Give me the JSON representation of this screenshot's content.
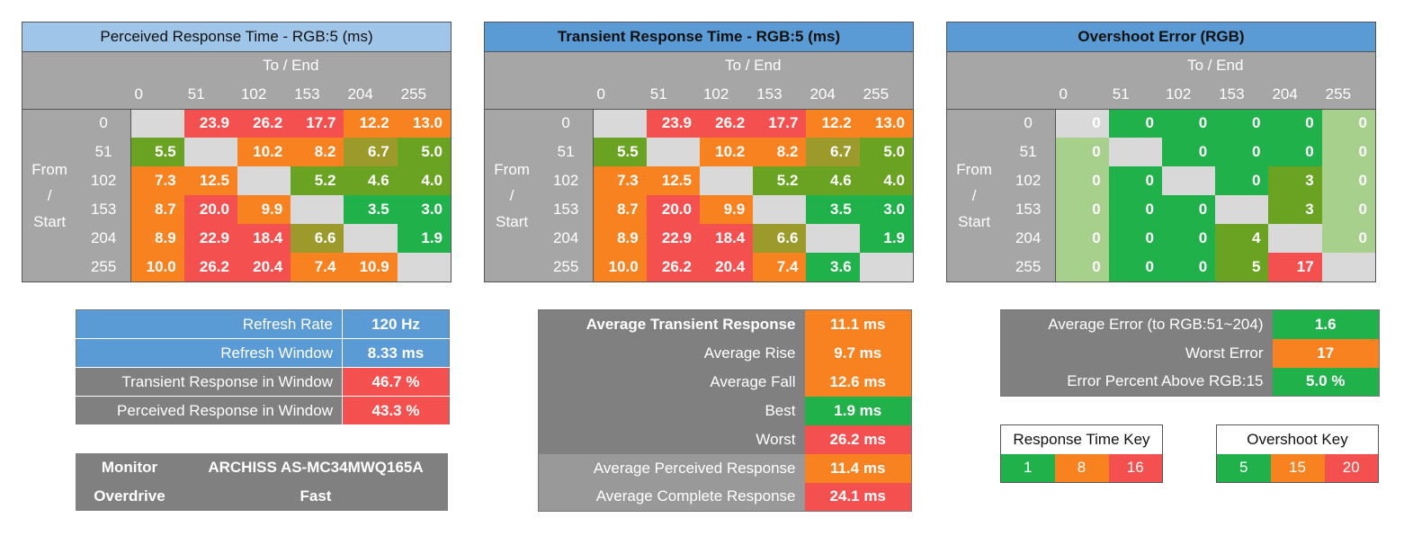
{
  "colors": {
    "green": "#21b14b",
    "olive": "#6aa221",
    "dark_olive": "#9c9a2a",
    "orange": "#f98220",
    "red": "#f55050",
    "light_green": "#a8d08d",
    "diag": "#d9d9d9",
    "header_gray": "#a6a6a6",
    "light_blue": "#9fc5e8",
    "blue": "#5b9bd5",
    "panel_gray": "#808080",
    "panel_gray2": "#999999"
  },
  "matrices": [
    {
      "title": "Perceived Response Time - RGB:5 (ms)",
      "to_end": "To / End",
      "from_start_lines": [
        "From",
        "/",
        "Start"
      ],
      "levels": [
        "0",
        "51",
        "102",
        "153",
        "204",
        "255"
      ],
      "rows": [
        [
          "",
          "23.9",
          "26.2",
          "17.7",
          "12.2",
          "13.0"
        ],
        [
          "5.5",
          "",
          "10.2",
          "8.2",
          "6.7",
          "5.0"
        ],
        [
          "7.3",
          "12.5",
          "",
          "5.2",
          "4.6",
          "4.0"
        ],
        [
          "8.7",
          "20.0",
          "9.9",
          "",
          "3.5",
          "3.0"
        ],
        [
          "8.9",
          "22.9",
          "18.4",
          "6.6",
          "",
          "1.9"
        ],
        [
          "10.0",
          "26.2",
          "20.4",
          "7.4",
          "10.9",
          ""
        ]
      ],
      "cell_colors": [
        [
          "diag",
          "red",
          "red",
          "red",
          "orange",
          "orange"
        ],
        [
          "olive",
          "diag",
          "orange",
          "orange",
          "dark_olive",
          "olive"
        ],
        [
          "orange",
          "orange",
          "diag",
          "olive",
          "olive",
          "olive"
        ],
        [
          "orange",
          "red",
          "orange",
          "diag",
          "green",
          "green"
        ],
        [
          "orange",
          "red",
          "red",
          "dark_olive",
          "diag",
          "green"
        ],
        [
          "orange",
          "red",
          "red",
          "orange",
          "orange",
          "diag"
        ]
      ]
    },
    {
      "title": "Transient Response Time - RGB:5 (ms)",
      "to_end": "To / End",
      "from_start_lines": [
        "From",
        "/",
        "Start"
      ],
      "levels": [
        "0",
        "51",
        "102",
        "153",
        "204",
        "255"
      ],
      "rows": [
        [
          "",
          "23.9",
          "26.2",
          "17.7",
          "12.2",
          "13.0"
        ],
        [
          "5.5",
          "",
          "10.2",
          "8.2",
          "6.7",
          "5.0"
        ],
        [
          "7.3",
          "12.5",
          "",
          "5.2",
          "4.6",
          "4.0"
        ],
        [
          "8.7",
          "20.0",
          "9.9",
          "",
          "3.5",
          "3.0"
        ],
        [
          "8.9",
          "22.9",
          "18.4",
          "6.6",
          "",
          "1.9"
        ],
        [
          "10.0",
          "26.2",
          "20.4",
          "7.4",
          "3.6",
          ""
        ]
      ],
      "cell_colors": [
        [
          "diag",
          "red",
          "red",
          "red",
          "orange",
          "orange"
        ],
        [
          "olive",
          "diag",
          "orange",
          "orange",
          "dark_olive",
          "olive"
        ],
        [
          "orange",
          "orange",
          "diag",
          "olive",
          "olive",
          "olive"
        ],
        [
          "orange",
          "red",
          "orange",
          "diag",
          "green",
          "green"
        ],
        [
          "orange",
          "red",
          "red",
          "dark_olive",
          "diag",
          "green"
        ],
        [
          "orange",
          "red",
          "red",
          "orange",
          "green",
          "diag"
        ]
      ]
    },
    {
      "title": "Overshoot Error (RGB)",
      "to_end": "To / End",
      "from_start_lines": [
        "From",
        "/",
        "Start"
      ],
      "levels": [
        "0",
        "51",
        "102",
        "153",
        "204",
        "255"
      ],
      "rows": [
        [
          "0",
          "0",
          "0",
          "0",
          "0",
          "0"
        ],
        [
          "0",
          "",
          "0",
          "0",
          "0",
          "0"
        ],
        [
          "0",
          "0",
          "",
          "0",
          "3",
          "0"
        ],
        [
          "0",
          "0",
          "0",
          "",
          "3",
          "0"
        ],
        [
          "0",
          "0",
          "0",
          "4",
          "",
          "0"
        ],
        [
          "0",
          "0",
          "0",
          "5",
          "17",
          ""
        ]
      ],
      "cell_colors": [
        [
          "diag",
          "green",
          "green",
          "green",
          "green",
          "light_green"
        ],
        [
          "light_green",
          "diag",
          "green",
          "green",
          "green",
          "light_green"
        ],
        [
          "light_green",
          "green",
          "diag",
          "green",
          "olive",
          "light_green"
        ],
        [
          "light_green",
          "green",
          "green",
          "diag",
          "olive",
          "light_green"
        ],
        [
          "light_green",
          "green",
          "green",
          "olive",
          "diag",
          "light_green"
        ],
        [
          "light_green",
          "green",
          "green",
          "olive",
          "red",
          "diag"
        ]
      ]
    }
  ],
  "refresh": [
    {
      "label": "Refresh Rate",
      "value": "120 Hz",
      "label_color": "blue",
      "value_color": "blue"
    },
    {
      "label": "Refresh Window",
      "value": "8.33 ms",
      "label_color": "blue",
      "value_color": "blue"
    },
    {
      "label": "Transient Response in Window",
      "value": "46.7 %",
      "label_color": "panel_gray",
      "value_color": "red"
    },
    {
      "label": "Perceived Response in Window",
      "value": "43.3 %",
      "label_color": "panel_gray",
      "value_color": "red"
    }
  ],
  "monitor": {
    "monitor_label": "Monitor",
    "monitor_value": "ARCHISS AS-MC34MWQ165A",
    "overdrive_label": "Overdrive",
    "overdrive_value": "Fast"
  },
  "averages": [
    {
      "label": "Average Transient Response",
      "value": "11.1 ms",
      "value_color": "orange",
      "bold": true,
      "label_color": "panel_gray"
    },
    {
      "label": "Average Rise",
      "value": "9.7 ms",
      "value_color": "orange",
      "bold": false,
      "label_color": "panel_gray"
    },
    {
      "label": "Average Fall",
      "value": "12.6 ms",
      "value_color": "orange",
      "bold": false,
      "label_color": "panel_gray"
    },
    {
      "label": "Best",
      "value": "1.9 ms",
      "value_color": "green",
      "bold": false,
      "label_color": "panel_gray"
    },
    {
      "label": "Worst",
      "value": "26.2 ms",
      "value_color": "red",
      "bold": false,
      "label_color": "panel_gray"
    },
    {
      "label": "Average Perceived Response",
      "value": "11.4 ms",
      "value_color": "orange",
      "bold": false,
      "label_color": "panel_gray2"
    },
    {
      "label": "Average Complete Response",
      "value": "24.1 ms",
      "value_color": "red",
      "bold": false,
      "label_color": "panel_gray2"
    }
  ],
  "errors": [
    {
      "label": "Average Error (to RGB:51~204)",
      "value": "1.6",
      "value_color": "green"
    },
    {
      "label": "Worst Error",
      "value": "17",
      "value_color": "orange"
    },
    {
      "label": "Error Percent Above RGB:15",
      "value": "5.0 %",
      "value_color": "green"
    }
  ],
  "response_key": {
    "title": "Response Time Key",
    "values": [
      "1",
      "8",
      "16"
    ],
    "colors": [
      "green",
      "orange",
      "red"
    ]
  },
  "overshoot_key": {
    "title": "Overshoot Key",
    "values": [
      "5",
      "15",
      "20"
    ],
    "colors": [
      "green",
      "orange",
      "red"
    ]
  }
}
